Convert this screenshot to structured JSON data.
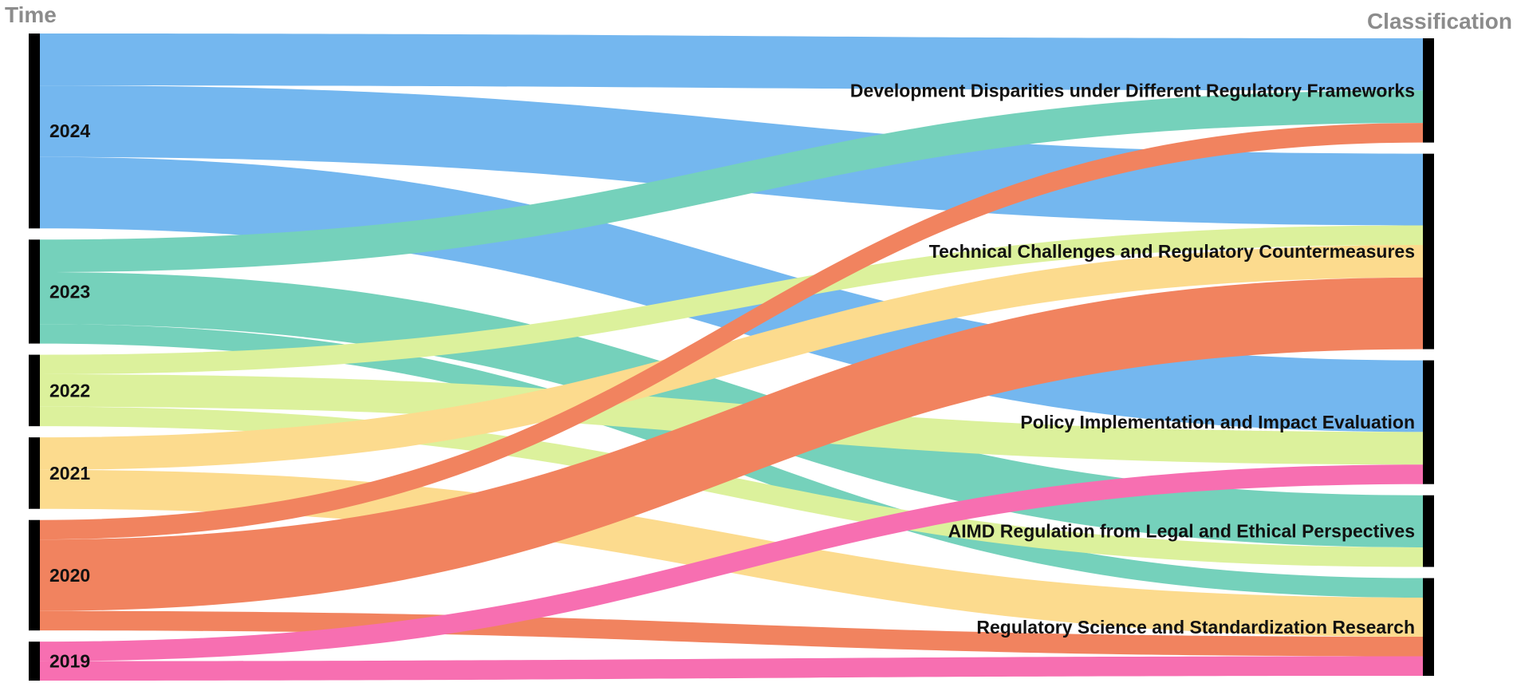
{
  "diagram": {
    "type": "sankey",
    "left_axis_title": "Time",
    "right_axis_title": "Classification",
    "sources": [
      {
        "id": "2024",
        "label": "2024",
        "color": "#74b7ef"
      },
      {
        "id": "2023",
        "label": "2023",
        "color": "#75d1bb"
      },
      {
        "id": "2022",
        "label": "2022",
        "color": "#dcf19c"
      },
      {
        "id": "2021",
        "label": "2021",
        "color": "#fcdb8e"
      },
      {
        "id": "2020",
        "label": "2020",
        "color": "#f1835f"
      },
      {
        "id": "2019",
        "label": "2019",
        "color": "#f76fb1"
      }
    ],
    "targets": [
      {
        "id": "dev",
        "label": "Development Disparities under Different Regulatory Frameworks"
      },
      {
        "id": "tech",
        "label": "Technical Challenges and Regulatory Countermeasures"
      },
      {
        "id": "policy",
        "label": "Policy Implementation and Impact Evaluation"
      },
      {
        "id": "legal",
        "label": "AIMD Regulation from Legal and Ethical Perspectives"
      },
      {
        "id": "science",
        "label": "Regulatory Science and Standardization Research"
      }
    ],
    "flows": [
      {
        "source": "2024",
        "target": "dev",
        "value": 8
      },
      {
        "source": "2024",
        "target": "tech",
        "value": 11
      },
      {
        "source": "2024",
        "target": "policy",
        "value": 11
      },
      {
        "source": "2023",
        "target": "dev",
        "value": 5
      },
      {
        "source": "2023",
        "target": "legal",
        "value": 8
      },
      {
        "source": "2023",
        "target": "science",
        "value": 3
      },
      {
        "source": "2022",
        "target": "tech",
        "value": 3
      },
      {
        "source": "2022",
        "target": "policy",
        "value": 5
      },
      {
        "source": "2022",
        "target": "legal",
        "value": 3
      },
      {
        "source": "2021",
        "target": "tech",
        "value": 5
      },
      {
        "source": "2021",
        "target": "science",
        "value": 6
      },
      {
        "source": "2020",
        "target": "dev",
        "value": 3
      },
      {
        "source": "2020",
        "target": "tech",
        "value": 11
      },
      {
        "source": "2020",
        "target": "science",
        "value": 3
      },
      {
        "source": "2019",
        "target": "policy",
        "value": 3
      },
      {
        "source": "2019",
        "target": "science",
        "value": 3
      }
    ]
  }
}
